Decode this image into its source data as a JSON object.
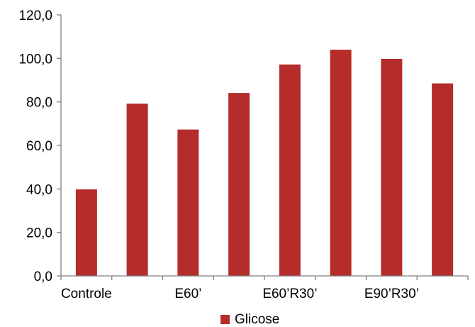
{
  "chart_data": {
    "type": "bar",
    "categories": [
      "Controle",
      "",
      "E60’",
      "",
      "E60’R30’",
      "",
      "E90’R30’",
      ""
    ],
    "series": [
      {
        "name": "Glicose",
        "values": [
          39.8,
          79.2,
          67.3,
          84.1,
          97.2,
          104.0,
          99.8,
          88.5
        ],
        "color": "#b52d2a"
      }
    ],
    "ylim": [
      0,
      120
    ],
    "yticks": [
      "0,0",
      "20,0",
      "40,0",
      "60,0",
      "80,0",
      "100,0",
      "120,0"
    ],
    "grid": false,
    "legend_position": "bottom"
  }
}
